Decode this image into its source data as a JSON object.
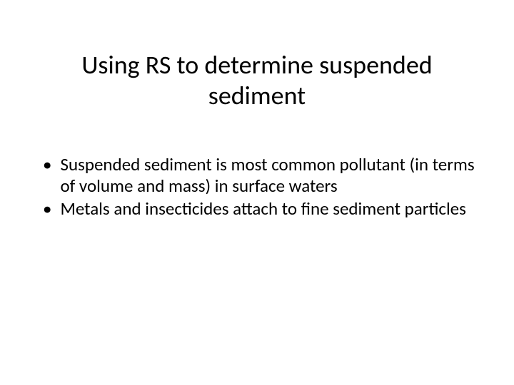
{
  "slide": {
    "title": "Using RS to determine suspended sediment",
    "bullets": [
      {
        "marker": "•",
        "text": "Suspended sediment is most common pollutant (in terms of volume and mass) in surface waters"
      },
      {
        "marker": "•",
        "text": "Metals and insecticides attach to fine sediment particles"
      }
    ]
  },
  "styling": {
    "background_color": "#ffffff",
    "text_color": "#000000",
    "title_fontsize": 36,
    "body_fontsize": 25,
    "font_family": "Calibri"
  }
}
